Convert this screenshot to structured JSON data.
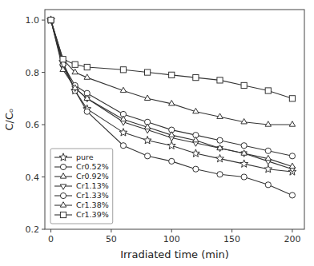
{
  "chart_data": {
    "type": "line",
    "xlabel": "Irradiated time (min)",
    "ylabel": "C/Cₒ",
    "x": [
      0,
      10,
      20,
      30,
      60,
      80,
      100,
      120,
      140,
      160,
      180,
      200
    ],
    "xlim": [
      -5,
      210
    ],
    "ylim": [
      0.2,
      1.04
    ],
    "xticks": [
      0,
      50,
      100,
      150,
      200
    ],
    "yticks": [
      0.2,
      0.4,
      0.6,
      0.8,
      {
        "value": 1.0,
        "label": "1.0"
      }
    ],
    "grid": false,
    "legend": "lower left",
    "series": [
      {
        "name": "pure",
        "color": "#333333",
        "marker": "star",
        "values": [
          1.0,
          0.84,
          0.73,
          0.66,
          0.57,
          0.54,
          0.52,
          0.49,
          0.47,
          0.45,
          0.43,
          0.42
        ]
      },
      {
        "name": "Cr0.52%",
        "color": "#333333",
        "marker": "circle",
        "values": [
          1.0,
          0.83,
          0.73,
          0.65,
          0.52,
          0.48,
          0.46,
          0.43,
          0.41,
          0.4,
          0.37,
          0.33
        ]
      },
      {
        "name": "Cr0.92%",
        "color": "#333333",
        "marker": "triangle-up",
        "values": [
          1.0,
          0.85,
          0.8,
          0.78,
          0.73,
          0.7,
          0.68,
          0.65,
          0.63,
          0.61,
          0.6,
          0.6
        ]
      },
      {
        "name": "Cr1.13%",
        "color": "#333333",
        "marker": "triangle-down",
        "values": [
          1.0,
          0.82,
          0.74,
          0.7,
          0.61,
          0.58,
          0.55,
          0.53,
          0.51,
          0.49,
          0.46,
          0.43
        ]
      },
      {
        "name": "Cr1.33%",
        "color": "#333333",
        "marker": "circle",
        "values": [
          1.0,
          0.83,
          0.75,
          0.72,
          0.64,
          0.61,
          0.58,
          0.56,
          0.54,
          0.52,
          0.5,
          0.48
        ]
      },
      {
        "name": "Cr1.38%",
        "color": "#333333",
        "marker": "triangle-up",
        "values": [
          1.0,
          0.81,
          0.74,
          0.7,
          0.62,
          0.59,
          0.56,
          0.54,
          0.51,
          0.49,
          0.47,
          0.44
        ]
      },
      {
        "name": "Cr1.39%",
        "color": "#333333",
        "marker": "square",
        "values": [
          1.0,
          0.85,
          0.83,
          0.82,
          0.81,
          0.8,
          0.79,
          0.78,
          0.77,
          0.75,
          0.73,
          0.7
        ]
      }
    ]
  }
}
